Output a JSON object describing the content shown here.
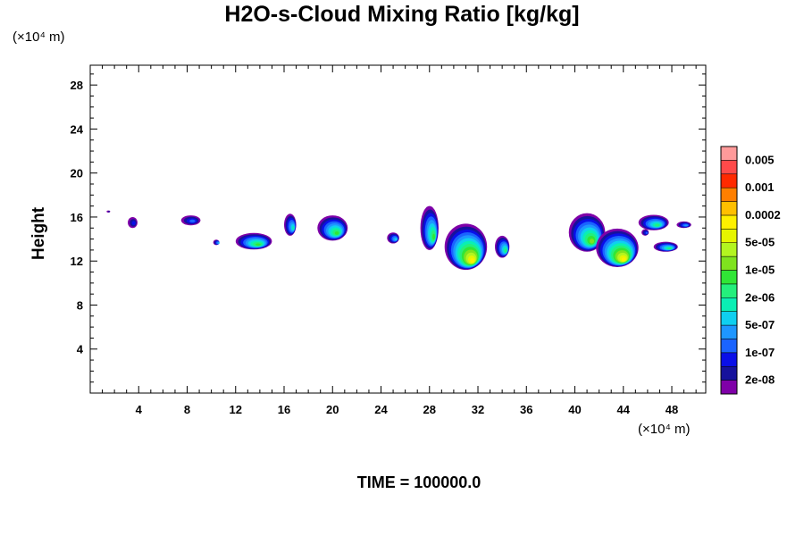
{
  "chart_data": {
    "type": "heatmap",
    "title": "H2O-s-Cloud Mixing Ratio [kg/kg]",
    "ylabel": "Height",
    "xlabel": "",
    "x_unit": "(×10⁴ m)",
    "y_unit": "(×10⁴ m)",
    "xlim": [
      0,
      50.8
    ],
    "ylim": [
      0,
      29.8
    ],
    "x_ticks": [
      4,
      8,
      12,
      16,
      20,
      24,
      28,
      32,
      36,
      40,
      44,
      48
    ],
    "y_ticks": [
      4,
      8,
      12,
      16,
      20,
      24,
      28
    ],
    "footer": "TIME = 100000.0",
    "colorbar": {
      "colors": [
        "#7f00a8",
        "#16129c",
        "#0a0fe8",
        "#1a64ff",
        "#1e96ff",
        "#0fcff0",
        "#0aefb4",
        "#24ef7c",
        "#30e636",
        "#7fe31e",
        "#b3f520",
        "#e6f500",
        "#fff000",
        "#ffbf00",
        "#ff7f00",
        "#ff2a00",
        "#ff4a4a",
        "#ff9a9a"
      ],
      "labels": [
        "2e-08",
        "1e-07",
        "5e-07",
        "2e-06",
        "1e-05",
        "5e-05",
        "0.0002",
        "0.001",
        "0.005"
      ]
    },
    "clouds": [
      {
        "x": 1.5,
        "y": 16.5,
        "w": 0.3,
        "h": 0.2,
        "peak": 1
      },
      {
        "x": 3.5,
        "y": 15.5,
        "w": 0.8,
        "h": 1.0,
        "peak": 2
      },
      {
        "x": 8.3,
        "y": 15.7,
        "w": 1.6,
        "h": 0.9,
        "peak": 3
      },
      {
        "x": 10.4,
        "y": 13.7,
        "w": 0.5,
        "h": 0.5,
        "peak": 5
      },
      {
        "x": 13.5,
        "y": 13.8,
        "w": 3.0,
        "h": 1.5,
        "peak": 8
      },
      {
        "x": 16.5,
        "y": 15.3,
        "w": 1.0,
        "h": 2.0,
        "peak": 6
      },
      {
        "x": 20.0,
        "y": 15.0,
        "w": 2.5,
        "h": 2.3,
        "peak": 8
      },
      {
        "x": 25.0,
        "y": 14.1,
        "w": 1.0,
        "h": 1.0,
        "peak": 5
      },
      {
        "x": 28.0,
        "y": 15.0,
        "w": 1.5,
        "h": 4.0,
        "peak": 8
      },
      {
        "x": 31.0,
        "y": 13.3,
        "w": 3.5,
        "h": 4.2,
        "peak": 12
      },
      {
        "x": 34.0,
        "y": 13.3,
        "w": 1.2,
        "h": 2.0,
        "peak": 7
      },
      {
        "x": 41.0,
        "y": 14.6,
        "w": 3.0,
        "h": 3.5,
        "peak": 9
      },
      {
        "x": 43.5,
        "y": 13.2,
        "w": 3.5,
        "h": 3.5,
        "peak": 12
      },
      {
        "x": 46.5,
        "y": 15.5,
        "w": 2.5,
        "h": 1.4,
        "peak": 7
      },
      {
        "x": 47.5,
        "y": 13.3,
        "w": 2.0,
        "h": 0.9,
        "peak": 7
      },
      {
        "x": 49.0,
        "y": 15.3,
        "w": 1.2,
        "h": 0.6,
        "peak": 4
      },
      {
        "x": 45.8,
        "y": 14.6,
        "w": 0.6,
        "h": 0.6,
        "peak": 3
      }
    ]
  }
}
